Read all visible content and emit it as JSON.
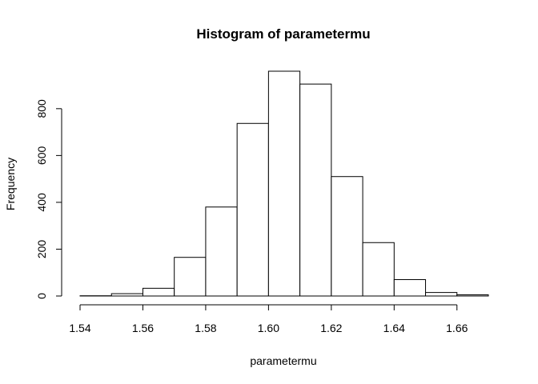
{
  "chart_data": {
    "type": "bar",
    "title": "Histogram of parametermu",
    "xlabel": "parametermu",
    "ylabel": "Frequency",
    "bin_edges": [
      1.54,
      1.55,
      1.56,
      1.57,
      1.58,
      1.59,
      1.6,
      1.61,
      1.62,
      1.63,
      1.64,
      1.65,
      1.66,
      1.67
    ],
    "values": [
      1,
      10,
      33,
      165,
      380,
      737,
      960,
      905,
      510,
      228,
      70,
      15,
      5
    ],
    "xlim": [
      1.54,
      1.67
    ],
    "ylim": [
      0,
      960
    ],
    "xticks": [
      1.54,
      1.56,
      1.58,
      1.6,
      1.62,
      1.64,
      1.66
    ],
    "xtick_labels": [
      "1.54",
      "1.56",
      "1.58",
      "1.60",
      "1.62",
      "1.64",
      "1.66"
    ],
    "yticks": [
      0,
      200,
      400,
      600,
      800
    ],
    "ytick_labels": [
      "0",
      "200",
      "400",
      "600",
      "800"
    ],
    "grid": false,
    "legend": "none"
  }
}
